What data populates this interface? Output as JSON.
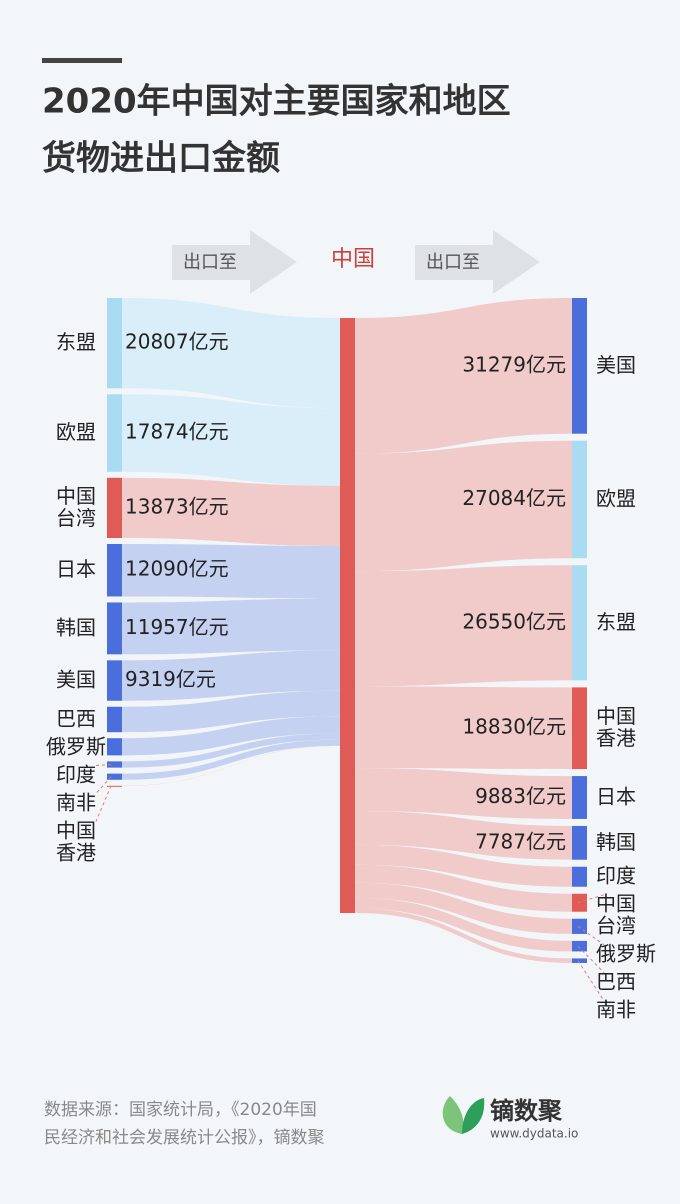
{
  "chart_data": {
    "type": "sankey",
    "title": [
      "2020年中国对主要国家和地区",
      "货物进出口金额"
    ],
    "center_node": "中国",
    "center_color": "#e05a56",
    "flow_labels": [
      "出口至",
      "出口至"
    ],
    "left": {
      "categories": [
        "东盟",
        "欧盟",
        "中国台湾",
        "日本",
        "韩国",
        "美国",
        "巴西",
        "俄罗斯",
        "印度",
        "南非",
        "中国香港"
      ],
      "values": [
        20807,
        17874,
        13873,
        12090,
        11957,
        9319,
        5869,
        3955,
        1442,
        1424,
        48
      ],
      "value_labels": [
        "20807亿元",
        "17874亿元",
        "13873亿元",
        "12090亿元",
        "11957亿元",
        "9319亿元",
        null,
        null,
        null,
        null,
        null
      ],
      "colors": [
        "#a9dcf3",
        "#a9dcf3",
        "#e05a56",
        "#4a6fdc",
        "#4a6fdc",
        "#4a6fdc",
        "#4a6fdc",
        "#4a6fdc",
        "#4a6fdc",
        "#4a6fdc",
        "#e05a56"
      ],
      "flow_colors": [
        "#d9eef9",
        "#d9eef9",
        "#f1caca",
        "#c4d1f1",
        "#c4d1f1",
        "#c4d1f1",
        "#c4d1f1",
        "#c4d1f1",
        "#c4d1f1",
        "#c4d1f1",
        "#f1caca"
      ]
    },
    "right": {
      "categories": [
        "美国",
        "欧盟",
        "东盟",
        "中国香港",
        "日本",
        "韩国",
        "印度",
        "中国台湾",
        "俄罗斯",
        "巴西",
        "南非"
      ],
      "values": [
        31279,
        27084,
        26550,
        18830,
        9883,
        7787,
        4613,
        4143,
        3506,
        2421,
        1053
      ],
      "value_labels": [
        "31279亿元",
        "27084亿元",
        "26550亿元",
        "18830亿元",
        "9883亿元",
        "7787亿元",
        null,
        null,
        null,
        null,
        null
      ],
      "colors": [
        "#4a6fdc",
        "#a9dcf3",
        "#a9dcf3",
        "#e05a56",
        "#4a6fdc",
        "#4a6fdc",
        "#4a6fdc",
        "#e05a56",
        "#4a6fdc",
        "#4a6fdc",
        "#4a6fdc"
      ],
      "flow_colors": [
        "#f1caca",
        "#f1caca",
        "#f1caca",
        "#f1caca",
        "#f1caca",
        "#f1caca",
        "#f1caca",
        "#f1caca",
        "#f1caca",
        "#f1caca",
        "#f1caca"
      ]
    }
  },
  "footer": {
    "source": [
      "数据来源：国家统计局，《2020年国",
      "民经济和社会发展统计公报》，镝数聚"
    ],
    "brand": "镝数聚",
    "url": "www.dydata.io"
  }
}
